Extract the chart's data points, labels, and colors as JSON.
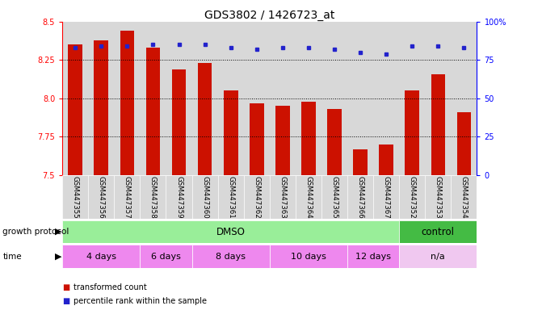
{
  "title": "GDS3802 / 1426723_at",
  "samples": [
    "GSM447355",
    "GSM447356",
    "GSM447357",
    "GSM447358",
    "GSM447359",
    "GSM447360",
    "GSM447361",
    "GSM447362",
    "GSM447363",
    "GSM447364",
    "GSM447365",
    "GSM447366",
    "GSM447367",
    "GSM447352",
    "GSM447353",
    "GSM447354"
  ],
  "bar_values": [
    8.35,
    8.38,
    8.44,
    8.33,
    8.19,
    8.23,
    8.05,
    7.97,
    7.95,
    7.98,
    7.93,
    7.67,
    7.7,
    8.05,
    8.16,
    7.91
  ],
  "percentile_values": [
    83,
    84,
    84,
    85,
    85,
    85,
    83,
    82,
    83,
    83,
    82,
    80,
    79,
    84,
    84,
    83
  ],
  "bar_color": "#cc1100",
  "dot_color": "#2222cc",
  "ylim_left": [
    7.5,
    8.5
  ],
  "ylim_right": [
    0,
    100
  ],
  "yticks_left": [
    7.5,
    7.75,
    8.0,
    8.25,
    8.5
  ],
  "yticks_right": [
    0,
    25,
    50,
    75,
    100
  ],
  "grid_values": [
    7.75,
    8.0,
    8.25
  ],
  "bar_bg_color": "#d8d8d8",
  "growth_protocol_label": "growth protocol",
  "time_label": "time",
  "dmso_color": "#99ee99",
  "control_color": "#44bb44",
  "time_color": "#ee88ee",
  "time_na_color": "#f0c8f0",
  "dmso_samples_count": 13,
  "control_samples_count": 3,
  "time_groups": [
    {
      "label": "4 days",
      "count": 3
    },
    {
      "label": "6 days",
      "count": 2
    },
    {
      "label": "8 days",
      "count": 3
    },
    {
      "label": "10 days",
      "count": 3
    },
    {
      "label": "12 days",
      "count": 2
    },
    {
      "label": "n/a",
      "count": 3
    }
  ],
  "legend_red": "transformed count",
  "legend_blue": "percentile rank within the sample",
  "title_fontsize": 10,
  "tick_fontsize": 7,
  "label_fontsize": 8
}
